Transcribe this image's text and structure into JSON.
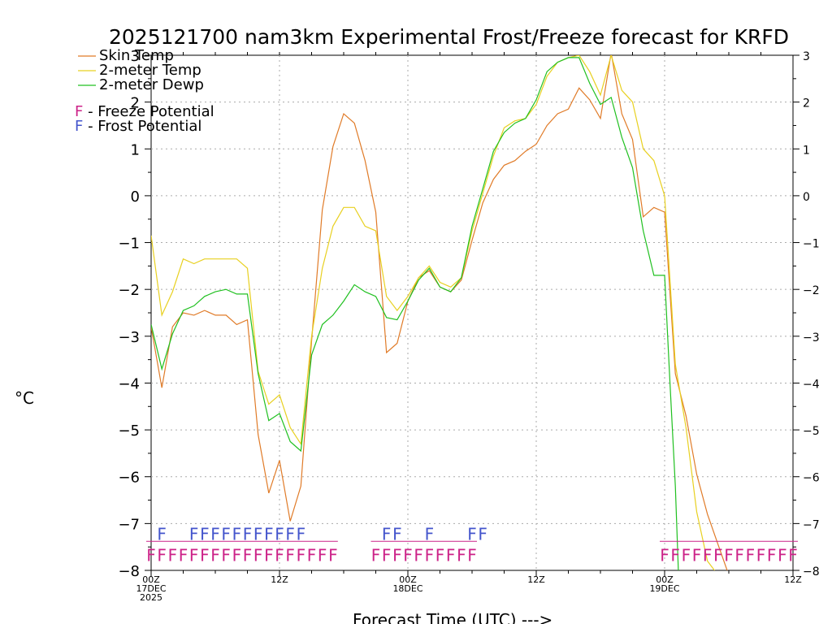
{
  "chart_data": {
    "type": "line",
    "title": "2025121700 nam3km Experimental Frost/Freeze forecast for KRFD",
    "ylabel": "°C",
    "xlabel": "Forecast Time (UTC) --->",
    "ylim": [
      -8,
      3
    ],
    "xlim": [
      0,
      60
    ],
    "yticks": [
      -8,
      -7,
      -6,
      -5,
      -4,
      -3,
      -2,
      -1,
      0,
      1,
      2,
      3
    ],
    "xticks": [
      {
        "x": 0,
        "lines": [
          "00Z",
          "17DEC",
          "2025"
        ]
      },
      {
        "x": 12,
        "lines": [
          "12Z"
        ]
      },
      {
        "x": 24,
        "lines": [
          "00Z",
          "18DEC"
        ]
      },
      {
        "x": 36,
        "lines": [
          "12Z"
        ]
      },
      {
        "x": 48,
        "lines": [
          "00Z",
          "19DEC"
        ]
      },
      {
        "x": 60,
        "lines": [
          "12Z"
        ]
      }
    ],
    "legend": [
      {
        "label": "Skin Temp",
        "color": "#e07b28"
      },
      {
        "label": "2-meter Temp",
        "color": "#e8d020"
      },
      {
        "label": "2-meter Dewp",
        "color": "#20c020"
      }
    ],
    "potential_legend": [
      {
        "char": "F",
        "label": " - Freeze Potential",
        "color": "#cc2288"
      },
      {
        "char": "F",
        "label": " - Frost Potential",
        "color": "#4455cc"
      }
    ],
    "series": [
      {
        "name": "Skin Temp",
        "color": "#e07b28",
        "x": [
          0,
          1,
          2,
          3,
          4,
          5,
          6,
          7,
          8,
          9,
          10,
          11,
          12,
          13,
          14,
          15,
          16,
          17,
          18,
          19,
          20,
          21,
          22,
          23,
          24,
          25,
          26,
          27,
          28,
          29,
          30,
          31,
          32,
          33,
          34,
          35,
          36,
          37,
          38,
          39,
          40,
          41,
          42,
          43,
          44,
          45,
          46,
          47,
          48,
          49,
          50,
          51,
          52,
          53,
          54
        ],
        "y": [
          -2.8,
          -4.1,
          -2.8,
          -2.5,
          -2.55,
          -2.45,
          -2.55,
          -2.55,
          -2.75,
          -2.65,
          -5.1,
          -6.35,
          -5.65,
          -6.95,
          -6.2,
          -3.1,
          -0.3,
          1.05,
          1.75,
          1.55,
          0.75,
          -0.35,
          -3.35,
          -3.15,
          -2.25,
          -1.75,
          -1.6,
          -1.95,
          -2.05,
          -1.8,
          -0.95,
          -0.15,
          0.35,
          0.65,
          0.75,
          0.95,
          1.1,
          1.5,
          1.75,
          1.85,
          2.3,
          2.05,
          1.65,
          3.05,
          1.75,
          1.2,
          -0.45,
          -0.25,
          -0.35,
          -3.8,
          -4.7,
          -5.95,
          -6.8,
          -7.45,
          -8.1
        ]
      },
      {
        "name": "2-meter Temp",
        "color": "#e8d020",
        "x": [
          0,
          1,
          2,
          3,
          4,
          5,
          6,
          7,
          8,
          9,
          10,
          11,
          12,
          13,
          14,
          15,
          16,
          17,
          18,
          19,
          20,
          21,
          22,
          23,
          24,
          25,
          26,
          27,
          28,
          29,
          30,
          31,
          32,
          33,
          34,
          35,
          36,
          37,
          38,
          39,
          40,
          41,
          42,
          43,
          44,
          45,
          46,
          47,
          48,
          49,
          50,
          51,
          52,
          53
        ],
        "y": [
          -0.85,
          -2.55,
          -2.05,
          -1.35,
          -1.45,
          -1.35,
          -1.35,
          -1.35,
          -1.35,
          -1.55,
          -3.75,
          -4.45,
          -4.25,
          -4.95,
          -5.3,
          -3.0,
          -1.55,
          -0.65,
          -0.25,
          -0.25,
          -0.65,
          -0.75,
          -2.15,
          -2.45,
          -2.15,
          -1.75,
          -1.5,
          -1.85,
          -1.95,
          -1.75,
          -0.75,
          0.05,
          0.85,
          1.45,
          1.6,
          1.65,
          1.95,
          2.55,
          2.85,
          2.95,
          3.0,
          2.65,
          2.15,
          3.0,
          2.25,
          2.0,
          1.0,
          0.75,
          0.0,
          -3.6,
          -4.95,
          -6.75,
          -7.8,
          -8.1
        ]
      },
      {
        "name": "2-meter Dewp",
        "color": "#20c020",
        "x": [
          0,
          1,
          2,
          3,
          4,
          5,
          6,
          7,
          8,
          9,
          10,
          11,
          12,
          13,
          14,
          15,
          16,
          17,
          18,
          19,
          20,
          21,
          22,
          23,
          24,
          25,
          26,
          27,
          28,
          29,
          30,
          31,
          32,
          33,
          34,
          35,
          36,
          37,
          38,
          39,
          40,
          41,
          42,
          43,
          44,
          45,
          46,
          47,
          48,
          48.5,
          49,
          49.3
        ],
        "y": [
          -2.75,
          -3.7,
          -2.95,
          -2.45,
          -2.35,
          -2.15,
          -2.05,
          -2.0,
          -2.1,
          -2.1,
          -3.8,
          -4.8,
          -4.65,
          -5.25,
          -5.45,
          -3.4,
          -2.75,
          -2.55,
          -2.25,
          -1.9,
          -2.05,
          -2.15,
          -2.6,
          -2.65,
          -2.25,
          -1.8,
          -1.55,
          -1.95,
          -2.05,
          -1.75,
          -0.65,
          0.15,
          0.95,
          1.35,
          1.55,
          1.65,
          2.05,
          2.65,
          2.85,
          2.95,
          2.95,
          2.4,
          1.95,
          2.1,
          1.25,
          0.6,
          -0.75,
          -1.7,
          -1.7,
          -4.0,
          -6.2,
          -8.1
        ]
      }
    ],
    "frost_potential": {
      "color": "#4455cc",
      "hours": [
        1,
        4,
        5,
        6,
        7,
        8,
        9,
        10,
        11,
        12,
        13,
        14,
        22,
        23,
        26,
        30,
        31
      ]
    },
    "freeze_potential": {
      "color": "#cc2288",
      "hours": [
        0,
        1,
        2,
        3,
        4,
        5,
        6,
        7,
        8,
        9,
        10,
        11,
        12,
        13,
        14,
        15,
        16,
        17,
        21,
        22,
        23,
        24,
        25,
        26,
        27,
        28,
        29,
        30,
        48,
        49,
        50,
        51,
        52,
        53,
        54,
        55,
        56,
        57,
        58,
        59,
        60
      ]
    },
    "markers": {
      "frost_symbol": "F",
      "freeze_symbol": "F"
    }
  }
}
